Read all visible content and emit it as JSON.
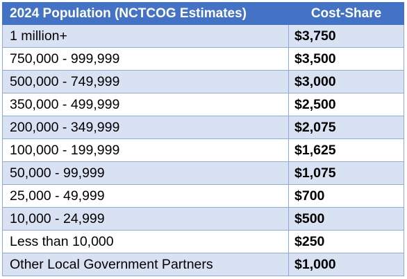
{
  "header": {
    "population": "2024 Population (NCTCOG Estimates)",
    "cost": "Cost-Share"
  },
  "rows": [
    {
      "population": "1 million+",
      "cost": "$3,750"
    },
    {
      "population": "750,000 - 999,999",
      "cost": "$3,500"
    },
    {
      "population": "500,000 - 749,999",
      "cost": "$3,000"
    },
    {
      "population": "350,000 - 499,999",
      "cost": "$2,500"
    },
    {
      "population": "200,000 - 349,999",
      "cost": "$2,075"
    },
    {
      "population": "100,000 - 199,999",
      "cost": "$1,625"
    },
    {
      "population": "50,000 - 99,999",
      "cost": "$1,075"
    },
    {
      "population": "25,000 - 49,999",
      "cost": "$700"
    },
    {
      "population": "10,000 - 24,999",
      "cost": "$500"
    },
    {
      "population": "Less than 10,000",
      "cost": "$250"
    },
    {
      "population": "Other Local Government Partners",
      "cost": "$1,000"
    }
  ],
  "colors": {
    "header_bg": "#4472c4",
    "band_bg": "#d9e2f3",
    "border": "#8eaadb"
  }
}
